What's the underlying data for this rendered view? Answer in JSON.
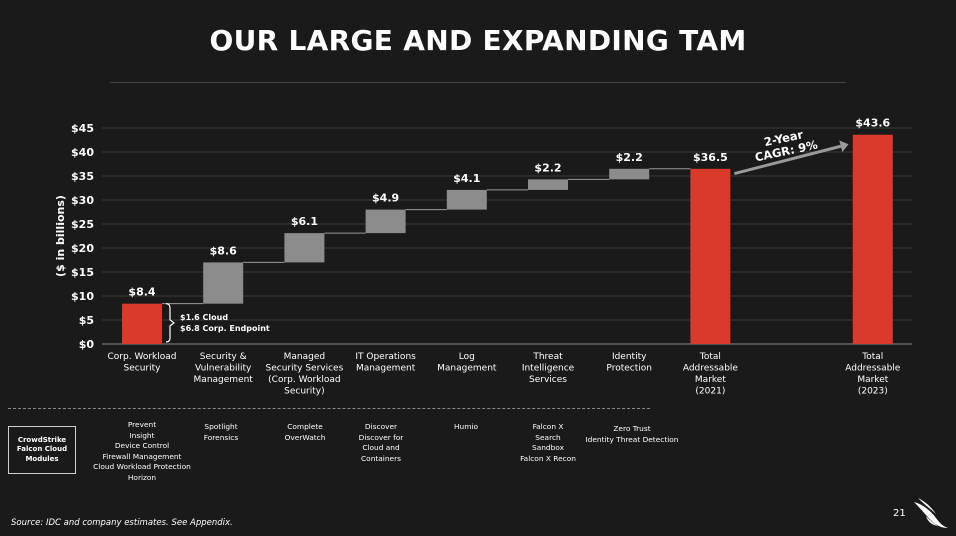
{
  "title": "OUR LARGE AND EXPANDING TAM",
  "colors": {
    "background": "#1a1a1a",
    "total_bar": "#d93a2b",
    "segment_bar": "#8c8c8c",
    "grid": "#3a3a3a",
    "connector": "#9a9a9a"
  },
  "chart_data": {
    "type": "bar",
    "subtype": "waterfall",
    "ylabel": "($ in billions)",
    "ylim": [
      0,
      45
    ],
    "yticks": [
      0,
      5,
      10,
      15,
      20,
      25,
      30,
      35,
      40,
      45
    ],
    "ytick_labels": [
      "$0",
      "$5",
      "$10",
      "$15",
      "$20",
      "$25",
      "$30",
      "$35",
      "$40",
      "$45"
    ],
    "grid": true,
    "categories": [
      [
        "Corp. Workload",
        "Security"
      ],
      [
        "Security &",
        "Vulnerability",
        "Management"
      ],
      [
        "Managed",
        "Security Services",
        "(Corp. Workload",
        "Security)"
      ],
      [
        "IT Operations",
        "Management"
      ],
      [
        "Log",
        "Management"
      ],
      [
        "Threat",
        "Intelligence",
        "Services"
      ],
      [
        "Identity",
        "Protection"
      ],
      [
        "Total",
        "Addressable",
        "Market",
        "(2021)"
      ],
      [],
      [
        "Total",
        "Addressable",
        "Market",
        "(2023)"
      ]
    ],
    "bars": [
      {
        "kind": "total",
        "base": 0,
        "value": 8.4,
        "label": "$8.4"
      },
      {
        "kind": "step",
        "base": 8.4,
        "value": 8.6,
        "label": "$8.6"
      },
      {
        "kind": "step",
        "base": 17.0,
        "value": 6.1,
        "label": "$6.1"
      },
      {
        "kind": "step",
        "base": 23.1,
        "value": 4.9,
        "label": "$4.9"
      },
      {
        "kind": "step",
        "base": 28.0,
        "value": 4.1,
        "label": "$4.1"
      },
      {
        "kind": "step",
        "base": 32.1,
        "value": 2.2,
        "label": "$2.2"
      },
      {
        "kind": "step",
        "base": 34.3,
        "value": 2.2,
        "label": "$2.2"
      },
      {
        "kind": "total",
        "base": 0,
        "value": 36.5,
        "label": "$36.5"
      },
      null,
      {
        "kind": "total",
        "base": 0,
        "value": 43.6,
        "label": "$43.6"
      }
    ],
    "breakdown_annotation": [
      "$1.6 Cloud",
      "$6.8 Corp. Endpoint"
    ],
    "cagr_annotation": [
      "2-Year",
      "CAGR: 9%"
    ]
  },
  "modules": {
    "box_label": [
      "CrowdStrike",
      "Falcon Cloud",
      "Modules"
    ],
    "columns": [
      [
        "Prevent",
        "Insight",
        "Device Control",
        "Firewall Management",
        "Cloud Workload Protection",
        "Horizon"
      ],
      [
        "Spotlight",
        "Forensics"
      ],
      [
        "Complete",
        "OverWatch"
      ],
      [
        "Discover",
        "Discover for",
        "Cloud and",
        "Containers"
      ],
      [
        "Humio"
      ],
      [
        "Falcon X",
        "Search",
        "Sandbox",
        "Falcon X Recon"
      ],
      [
        "Zero Trust",
        "Identity Threat Detection"
      ]
    ]
  },
  "footer": {
    "source": "Source: IDC and company estimates.  See Appendix.",
    "page_number": "21"
  },
  "icons": {
    "logo": "crowdstrike-falcon-logo-icon"
  }
}
